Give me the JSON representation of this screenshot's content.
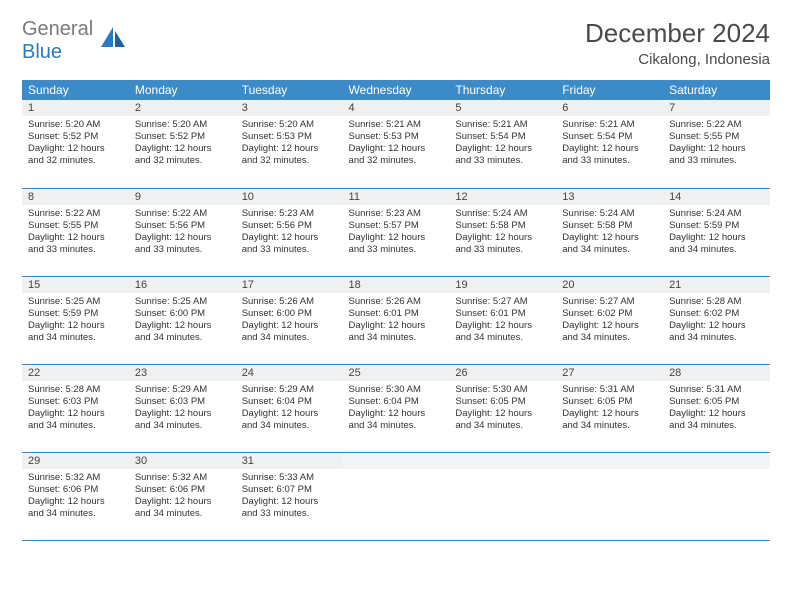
{
  "brand": {
    "part1": "General",
    "part2": "Blue"
  },
  "title": "December 2024",
  "location": "Cikalong, Indonesia",
  "weekday_headers": [
    "Sunday",
    "Monday",
    "Tuesday",
    "Wednesday",
    "Thursday",
    "Friday",
    "Saturday"
  ],
  "colors": {
    "header_bg": "#3b8bc9",
    "header_text": "#ffffff",
    "daynum_bg": "#eef0f2",
    "border": "#3b8bc9",
    "brand_gray": "#7a7a7a",
    "brand_blue": "#2a7bc0"
  },
  "days": [
    {
      "n": 1,
      "sr": "5:20 AM",
      "ss": "5:52 PM",
      "dl": "12 hours and 32 minutes."
    },
    {
      "n": 2,
      "sr": "5:20 AM",
      "ss": "5:52 PM",
      "dl": "12 hours and 32 minutes."
    },
    {
      "n": 3,
      "sr": "5:20 AM",
      "ss": "5:53 PM",
      "dl": "12 hours and 32 minutes."
    },
    {
      "n": 4,
      "sr": "5:21 AM",
      "ss": "5:53 PM",
      "dl": "12 hours and 32 minutes."
    },
    {
      "n": 5,
      "sr": "5:21 AM",
      "ss": "5:54 PM",
      "dl": "12 hours and 33 minutes."
    },
    {
      "n": 6,
      "sr": "5:21 AM",
      "ss": "5:54 PM",
      "dl": "12 hours and 33 minutes."
    },
    {
      "n": 7,
      "sr": "5:22 AM",
      "ss": "5:55 PM",
      "dl": "12 hours and 33 minutes."
    },
    {
      "n": 8,
      "sr": "5:22 AM",
      "ss": "5:55 PM",
      "dl": "12 hours and 33 minutes."
    },
    {
      "n": 9,
      "sr": "5:22 AM",
      "ss": "5:56 PM",
      "dl": "12 hours and 33 minutes."
    },
    {
      "n": 10,
      "sr": "5:23 AM",
      "ss": "5:56 PM",
      "dl": "12 hours and 33 minutes."
    },
    {
      "n": 11,
      "sr": "5:23 AM",
      "ss": "5:57 PM",
      "dl": "12 hours and 33 minutes."
    },
    {
      "n": 12,
      "sr": "5:24 AM",
      "ss": "5:58 PM",
      "dl": "12 hours and 33 minutes."
    },
    {
      "n": 13,
      "sr": "5:24 AM",
      "ss": "5:58 PM",
      "dl": "12 hours and 34 minutes."
    },
    {
      "n": 14,
      "sr": "5:24 AM",
      "ss": "5:59 PM",
      "dl": "12 hours and 34 minutes."
    },
    {
      "n": 15,
      "sr": "5:25 AM",
      "ss": "5:59 PM",
      "dl": "12 hours and 34 minutes."
    },
    {
      "n": 16,
      "sr": "5:25 AM",
      "ss": "6:00 PM",
      "dl": "12 hours and 34 minutes."
    },
    {
      "n": 17,
      "sr": "5:26 AM",
      "ss": "6:00 PM",
      "dl": "12 hours and 34 minutes."
    },
    {
      "n": 18,
      "sr": "5:26 AM",
      "ss": "6:01 PM",
      "dl": "12 hours and 34 minutes."
    },
    {
      "n": 19,
      "sr": "5:27 AM",
      "ss": "6:01 PM",
      "dl": "12 hours and 34 minutes."
    },
    {
      "n": 20,
      "sr": "5:27 AM",
      "ss": "6:02 PM",
      "dl": "12 hours and 34 minutes."
    },
    {
      "n": 21,
      "sr": "5:28 AM",
      "ss": "6:02 PM",
      "dl": "12 hours and 34 minutes."
    },
    {
      "n": 22,
      "sr": "5:28 AM",
      "ss": "6:03 PM",
      "dl": "12 hours and 34 minutes."
    },
    {
      "n": 23,
      "sr": "5:29 AM",
      "ss": "6:03 PM",
      "dl": "12 hours and 34 minutes."
    },
    {
      "n": 24,
      "sr": "5:29 AM",
      "ss": "6:04 PM",
      "dl": "12 hours and 34 minutes."
    },
    {
      "n": 25,
      "sr": "5:30 AM",
      "ss": "6:04 PM",
      "dl": "12 hours and 34 minutes."
    },
    {
      "n": 26,
      "sr": "5:30 AM",
      "ss": "6:05 PM",
      "dl": "12 hours and 34 minutes."
    },
    {
      "n": 27,
      "sr": "5:31 AM",
      "ss": "6:05 PM",
      "dl": "12 hours and 34 minutes."
    },
    {
      "n": 28,
      "sr": "5:31 AM",
      "ss": "6:05 PM",
      "dl": "12 hours and 34 minutes."
    },
    {
      "n": 29,
      "sr": "5:32 AM",
      "ss": "6:06 PM",
      "dl": "12 hours and 34 minutes."
    },
    {
      "n": 30,
      "sr": "5:32 AM",
      "ss": "6:06 PM",
      "dl": "12 hours and 34 minutes."
    },
    {
      "n": 31,
      "sr": "5:33 AM",
      "ss": "6:07 PM",
      "dl": "12 hours and 33 minutes."
    }
  ],
  "labels": {
    "sunrise": "Sunrise:",
    "sunset": "Sunset:",
    "daylight": "Daylight:"
  }
}
